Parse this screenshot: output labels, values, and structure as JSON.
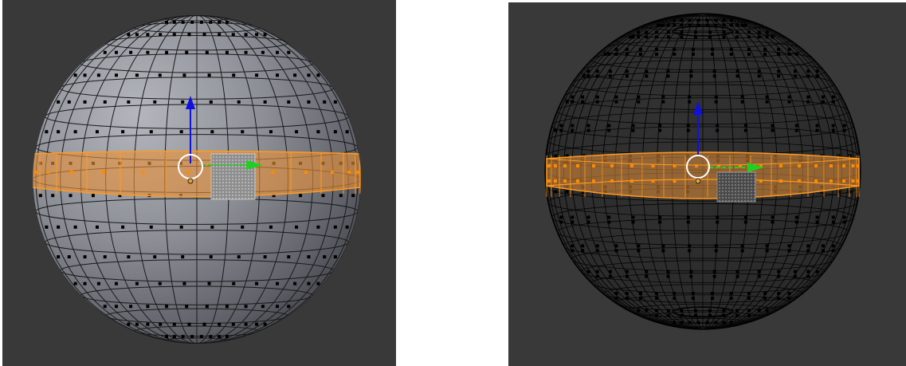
{
  "viewports": [
    {
      "name": "left-viewport",
      "shading": "solid",
      "background_color": "#393939",
      "mesh": "uv-sphere",
      "selection": "equator-face-loop"
    },
    {
      "name": "right-viewport",
      "shading": "wireframe",
      "background_color": "#393939",
      "mesh": "uv-sphere",
      "selection": "equator-face-loop"
    }
  ],
  "colors": {
    "selection_fill": "#e8923a",
    "selection_edge": "#ff9a1f",
    "active_face": "#9a9a9a",
    "gizmo_z": "#1010e0",
    "gizmo_x": "#20d020",
    "sphere_light": "#a9abb3",
    "sphere_dark": "#2a2a2a",
    "wire": "#000000"
  },
  "icons": [
    "transform-gizmo-icon",
    "pivot-circle-icon",
    "z-axis-arrow-icon",
    "x-axis-arrow-icon",
    "origin-dot-icon"
  ]
}
